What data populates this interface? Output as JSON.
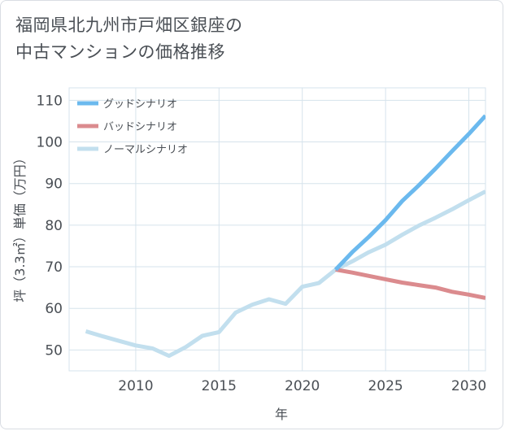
{
  "title_lines": [
    "福岡県北九州市戸畑区銀座の",
    "中古マンションの価格推移"
  ],
  "chart_data": {
    "type": "line",
    "xlabel": "年",
    "ylabel": "坪（3.3㎡）単価（万円）",
    "xlim": [
      2006,
      2031
    ],
    "ylim": [
      45,
      113
    ],
    "xticks": [
      2010,
      2015,
      2020,
      2025,
      2030
    ],
    "yticks": [
      50,
      60,
      70,
      80,
      90,
      100,
      110
    ],
    "grid": true,
    "legend_position": "top-left",
    "series": [
      {
        "name": "グッドシナリオ",
        "color": "#6bb9ee",
        "x": [
          2022,
          2023,
          2024,
          2025,
          2026,
          2027,
          2028,
          2029,
          2030,
          2031
        ],
        "y": [
          69.3,
          73.5,
          77.2,
          81.2,
          85.8,
          89.6,
          93.6,
          97.8,
          101.9,
          106.3
        ]
      },
      {
        "name": "バッドシナリオ",
        "color": "#db8b8e",
        "x": [
          2022,
          2023,
          2024,
          2025,
          2026,
          2027,
          2028,
          2029,
          2030,
          2031
        ],
        "y": [
          69.3,
          68.6,
          67.8,
          67.0,
          66.2,
          65.6,
          65.0,
          64.0,
          63.3,
          62.5
        ]
      },
      {
        "name": "ノーマルシナリオ",
        "color": "#c2dfee",
        "x": [
          2007,
          2008,
          2009,
          2010,
          2011,
          2012,
          2013,
          2014,
          2015,
          2016,
          2017,
          2018,
          2019,
          2020,
          2021,
          2022,
          2023,
          2024,
          2025,
          2026,
          2027,
          2028,
          2029,
          2030,
          2031
        ],
        "y": [
          54.5,
          53.3,
          52.2,
          51.1,
          50.4,
          48.6,
          50.7,
          53.4,
          54.3,
          59.0,
          60.9,
          62.2,
          61.1,
          65.2,
          66.1,
          69.3,
          71.3,
          73.5,
          75.3,
          77.7,
          79.9,
          81.8,
          83.8,
          86.0,
          88.1
        ]
      }
    ]
  }
}
